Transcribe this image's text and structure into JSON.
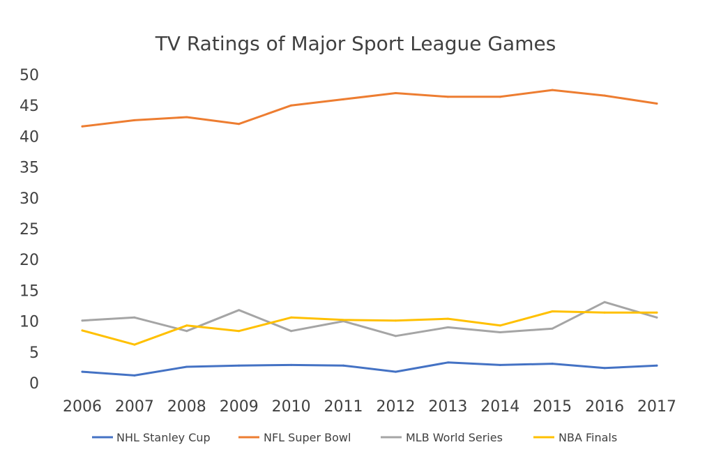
{
  "chart_data": {
    "type": "line",
    "title": "TV Ratings of Major Sport League Games",
    "xlabel": "",
    "ylabel": "",
    "categories": [
      "2006",
      "2007",
      "2008",
      "2009",
      "2010",
      "2011",
      "2012",
      "2013",
      "2014",
      "2015",
      "2016",
      "2017"
    ],
    "ylim": [
      0,
      50
    ],
    "yticks": [
      0,
      5,
      10,
      15,
      20,
      25,
      30,
      35,
      40,
      45,
      50
    ],
    "grid": false,
    "legend_position": "bottom",
    "series": [
      {
        "name": "NHL Stanley Cup",
        "color": "#4472C4",
        "values": [
          1.8,
          1.2,
          2.6,
          2.8,
          2.9,
          2.8,
          1.8,
          3.3,
          2.9,
          3.1,
          2.4,
          2.8
        ]
      },
      {
        "name": "NFL Super Bowl",
        "color": "#ED7D31",
        "values": [
          41.6,
          42.6,
          43.1,
          42.0,
          45.0,
          46.0,
          47.0,
          46.4,
          46.4,
          47.5,
          46.6,
          45.3
        ]
      },
      {
        "name": "MLB World Series",
        "color": "#A5A5A5",
        "values": [
          10.1,
          10.6,
          8.4,
          11.8,
          8.4,
          10.0,
          7.6,
          9.0,
          8.2,
          8.8,
          13.1,
          10.6
        ]
      },
      {
        "name": "NBA Finals",
        "color": "#FFC000",
        "values": [
          8.5,
          6.2,
          9.3,
          8.4,
          10.6,
          10.2,
          10.1,
          10.4,
          9.3,
          11.6,
          11.4,
          11.4
        ]
      }
    ]
  }
}
